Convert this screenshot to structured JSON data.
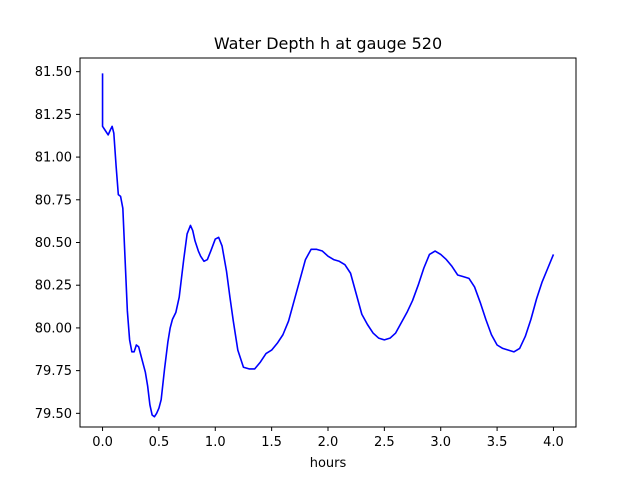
{
  "chart_data": {
    "type": "line",
    "title": "Water Depth h at gauge 520",
    "xlabel": "hours",
    "ylabel": "",
    "xlim": [
      -0.2,
      4.2
    ],
    "ylim": [
      79.42,
      81.58
    ],
    "xticks": [
      0.0,
      0.5,
      1.0,
      1.5,
      2.0,
      2.5,
      3.0,
      3.5,
      4.0
    ],
    "xtick_labels": [
      "0.0",
      "0.5",
      "1.0",
      "1.5",
      "2.0",
      "2.5",
      "3.0",
      "3.5",
      "4.0"
    ],
    "yticks": [
      79.5,
      79.75,
      80.0,
      80.25,
      80.5,
      80.75,
      81.0,
      81.25,
      81.5
    ],
    "ytick_labels": [
      "79.50",
      "79.75",
      "80.00",
      "80.25",
      "80.50",
      "80.75",
      "81.00",
      "81.25",
      "81.50"
    ],
    "grid": false,
    "series": [
      {
        "color": "#0000ff",
        "x": [
          0.0,
          0.0,
          0.0,
          0.02,
          0.05,
          0.07,
          0.085,
          0.1,
          0.12,
          0.14,
          0.16,
          0.18,
          0.2,
          0.22,
          0.24,
          0.26,
          0.28,
          0.3,
          0.32,
          0.34,
          0.36,
          0.38,
          0.4,
          0.42,
          0.44,
          0.46,
          0.48,
          0.5,
          0.52,
          0.55,
          0.58,
          0.6,
          0.62,
          0.65,
          0.68,
          0.72,
          0.75,
          0.78,
          0.8,
          0.82,
          0.85,
          0.87,
          0.9,
          0.93,
          0.96,
          1.0,
          1.03,
          1.06,
          1.1,
          1.13,
          1.16,
          1.2,
          1.25,
          1.3,
          1.35,
          1.4,
          1.45,
          1.5,
          1.55,
          1.6,
          1.65,
          1.7,
          1.75,
          1.8,
          1.85,
          1.9,
          1.95,
          2.0,
          2.05,
          2.1,
          2.15,
          2.2,
          2.25,
          2.3,
          2.35,
          2.4,
          2.45,
          2.5,
          2.55,
          2.6,
          2.65,
          2.7,
          2.75,
          2.8,
          2.85,
          2.9,
          2.95,
          3.0,
          3.05,
          3.1,
          3.15,
          3.2,
          3.25,
          3.3,
          3.35,
          3.4,
          3.45,
          3.5,
          3.55,
          3.6,
          3.65,
          3.7,
          3.75,
          3.8,
          3.85,
          3.9,
          3.95,
          4.0
        ],
        "y": [
          81.49,
          81.3,
          81.18,
          81.16,
          81.13,
          81.16,
          81.18,
          81.14,
          80.95,
          80.78,
          80.77,
          80.7,
          80.4,
          80.1,
          79.93,
          79.86,
          79.86,
          79.9,
          79.89,
          79.84,
          79.79,
          79.74,
          79.66,
          79.55,
          79.49,
          79.48,
          79.5,
          79.53,
          79.58,
          79.76,
          79.92,
          80.0,
          80.05,
          80.09,
          80.18,
          80.4,
          80.55,
          80.6,
          80.57,
          80.51,
          80.45,
          80.42,
          80.39,
          80.4,
          80.45,
          80.52,
          80.53,
          80.48,
          80.33,
          80.18,
          80.04,
          79.87,
          79.77,
          79.76,
          79.76,
          79.8,
          79.85,
          79.87,
          79.91,
          79.96,
          80.04,
          80.16,
          80.28,
          80.4,
          80.46,
          80.46,
          80.45,
          80.42,
          80.4,
          80.39,
          80.37,
          80.32,
          80.2,
          80.08,
          80.02,
          79.97,
          79.94,
          79.93,
          79.94,
          79.97,
          80.03,
          80.09,
          80.16,
          80.25,
          80.35,
          80.43,
          80.45,
          80.43,
          80.4,
          80.36,
          80.31,
          80.3,
          80.29,
          80.24,
          80.15,
          80.05,
          79.96,
          79.9,
          79.88,
          79.87,
          79.86,
          79.88,
          79.95,
          80.05,
          80.17,
          80.27,
          80.35,
          80.43
        ]
      }
    ]
  }
}
